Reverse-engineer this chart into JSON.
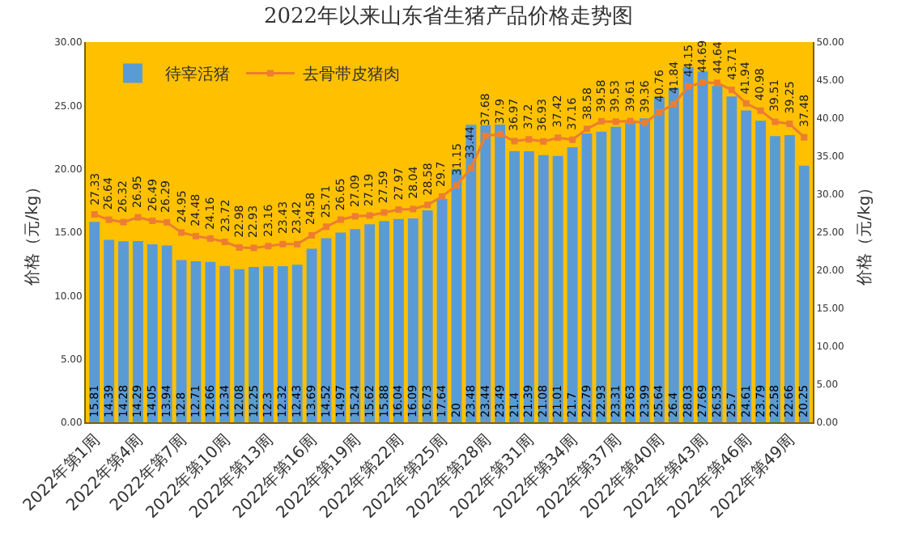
{
  "chart_data": {
    "type": "bar",
    "title": "2022年以来山东省生猪产品价格走势图",
    "categories": [
      "2022年第1周",
      null,
      null,
      "2022年第4周",
      null,
      null,
      "2022年第7周",
      null,
      null,
      "2022年第10周",
      null,
      null,
      "2022年第13周",
      null,
      null,
      "2022年第16周",
      null,
      null,
      "2022年第19周",
      null,
      null,
      "2022年第22周",
      null,
      null,
      "2022年第25周",
      null,
      null,
      "2022年第28周",
      null,
      null,
      "2022年第31周",
      null,
      null,
      "2022年第34周",
      null,
      null,
      "2022年第37周",
      null,
      null,
      "2022年第40周",
      null,
      null,
      "2022年第43周",
      null,
      null,
      "2022年第46周",
      null,
      null,
      "2022年第49周",
      null
    ],
    "series": [
      {
        "name": "待宰活猪",
        "color": "#5b9bd5",
        "values": [
          15.81,
          14.39,
          14.28,
          14.29,
          14.05,
          13.94,
          12.8,
          12.71,
          12.66,
          12.34,
          12.08,
          12.25,
          12.3,
          12.32,
          12.43,
          13.69,
          14.52,
          14.97,
          15.24,
          15.62,
          15.88,
          16.04,
          16.09,
          16.73,
          17.64,
          20.0,
          23.48,
          23.44,
          23.49,
          21.4,
          21.39,
          21.08,
          21.01,
          21.7,
          22.79,
          22.93,
          23.31,
          23.63,
          23.99,
          25.64,
          26.4,
          28.03,
          27.69,
          26.53,
          25.7,
          24.61,
          23.79,
          22.58,
          22.66,
          20.25
        ]
      },
      {
        "name": "去骨带皮猪肉",
        "type": "line",
        "axis": "y2",
        "color": "#ed7d31",
        "marker": "square",
        "values": [
          27.33,
          26.64,
          26.32,
          26.95,
          26.49,
          26.29,
          24.95,
          24.48,
          24.16,
          23.72,
          22.98,
          22.93,
          23.16,
          23.43,
          23.42,
          24.58,
          25.71,
          26.65,
          27.09,
          27.19,
          27.59,
          27.97,
          28.04,
          28.58,
          29.7,
          31.15,
          33.44,
          37.68,
          37.9,
          36.97,
          37.2,
          36.93,
          37.42,
          37.16,
          38.58,
          39.58,
          39.53,
          39.61,
          39.36,
          40.76,
          41.84,
          44.15,
          44.69,
          44.64,
          43.71,
          41.94,
          40.98,
          39.51,
          39.25,
          37.48
        ]
      }
    ],
    "ylabel": "价格（元/kg）",
    "y2label": "价格（元/kg）",
    "ylim": [
      0,
      30
    ],
    "yticks": [
      {
        "value": 0,
        "label": "0.00"
      },
      {
        "value": 5,
        "label": "5.00"
      },
      {
        "value": 10,
        "label": "10.00"
      },
      {
        "value": 15,
        "label": "15.00"
      },
      {
        "value": 20,
        "label": "20.00"
      },
      {
        "value": 25,
        "label": "25.00"
      },
      {
        "value": 30,
        "label": "30.00"
      }
    ],
    "y2lim": [
      0,
      50
    ],
    "y2ticks": [
      {
        "value": 0,
        "label": "0.00"
      },
      {
        "value": 5,
        "label": "5.00"
      },
      {
        "value": 10,
        "label": "10.00"
      },
      {
        "value": 15,
        "label": "15.00"
      },
      {
        "value": 20,
        "label": "20.00"
      },
      {
        "value": 25,
        "label": "25.00"
      },
      {
        "value": 30,
        "label": "30.00"
      },
      {
        "value": 35,
        "label": "35.00"
      },
      {
        "value": 40,
        "label": "40.00"
      },
      {
        "value": 45,
        "label": "45.00"
      },
      {
        "value": 50,
        "label": "50.00"
      }
    ],
    "data_labels": true,
    "grid": false,
    "legend": "top left"
  }
}
